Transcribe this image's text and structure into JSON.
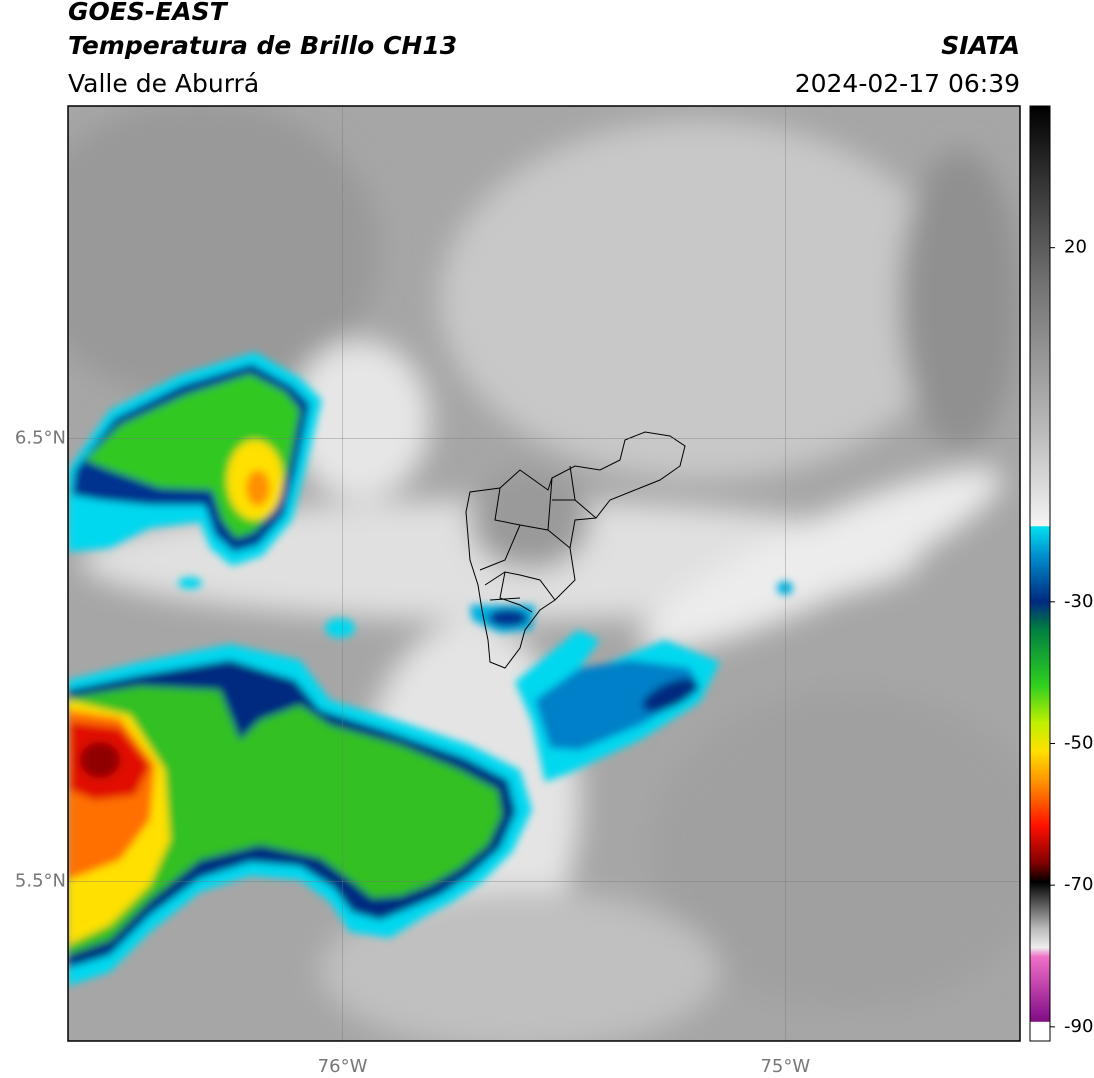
{
  "header": {
    "title": "GOES-EAST",
    "subtitle": "Temperatura de Brillo CH13",
    "region": "Valle de Aburrá",
    "source": "SIATA",
    "timestamp": "2024-02-17 06:39"
  },
  "map": {
    "xlim": [
      -76.62,
      -74.47
    ],
    "ylim": [
      5.14,
      7.25
    ],
    "xticks": [
      {
        "value": -76,
        "label": "76°W"
      },
      {
        "value": -75,
        "label": "75°W"
      }
    ],
    "yticks": [
      {
        "value": 6.5,
        "label": "6.5°N"
      },
      {
        "value": 5.5,
        "label": "5.5°N"
      }
    ],
    "grid": true
  },
  "colorbar": {
    "lim": [
      -92,
      40
    ],
    "ticks": [
      20,
      -30,
      -50,
      -70,
      -90
    ]
  }
}
